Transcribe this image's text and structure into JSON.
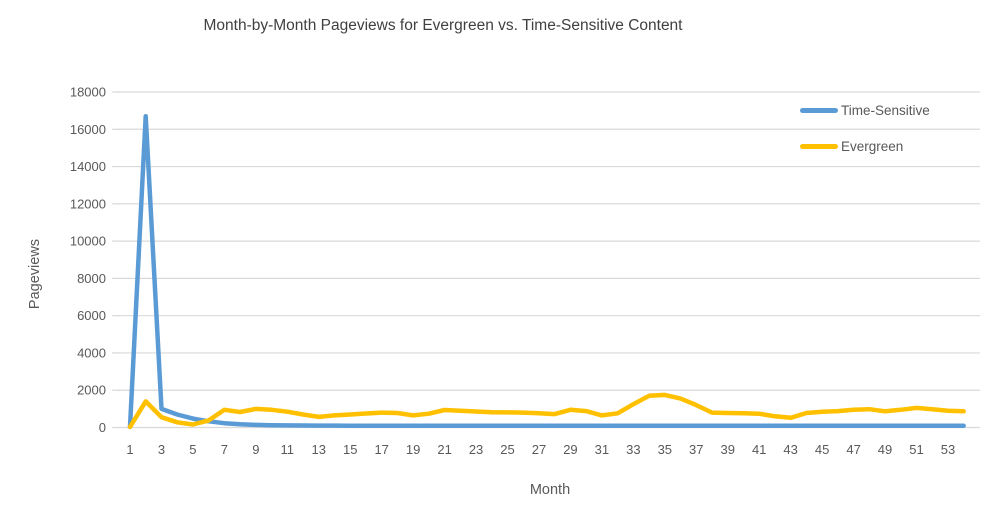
{
  "chart_data": {
    "type": "line",
    "title": "Month-by-Month Pageviews for Evergreen vs. Time-Sensitive Content",
    "xlabel": "Month",
    "ylabel": "Pageviews",
    "ylim": [
      0,
      18000
    ],
    "yticks": [
      0,
      2000,
      4000,
      6000,
      8000,
      10000,
      12000,
      14000,
      16000,
      18000
    ],
    "xtick_labels": [
      "1",
      "3",
      "5",
      "7",
      "9",
      "11",
      "13",
      "15",
      "17",
      "19",
      "21",
      "23",
      "25",
      "27",
      "29",
      "31",
      "33",
      "35",
      "37",
      "39",
      "41",
      "43",
      "45",
      "47",
      "49",
      "51",
      "53"
    ],
    "x": [
      1,
      2,
      3,
      4,
      5,
      6,
      7,
      8,
      9,
      10,
      11,
      12,
      13,
      14,
      15,
      16,
      17,
      18,
      19,
      20,
      21,
      22,
      23,
      24,
      25,
      26,
      27,
      28,
      29,
      30,
      31,
      32,
      33,
      34,
      35,
      36,
      37,
      38,
      39,
      40,
      41,
      42,
      43,
      44,
      45,
      46,
      47,
      48,
      49,
      50,
      51,
      52,
      53,
      54
    ],
    "grid": true,
    "legend_position": "top-right-overlay",
    "colors": {
      "grid": "#D9D9D9",
      "axis_text": "#595959",
      "title_text": "#404040"
    },
    "series": [
      {
        "name": "Time-Sensitive",
        "color": "#5B9BD5",
        "values": [
          30,
          16700,
          1000,
          700,
          480,
          330,
          230,
          170,
          140,
          120,
          110,
          105,
          100,
          100,
          95,
          95,
          95,
          90,
          90,
          90,
          90,
          90,
          90,
          90,
          90,
          90,
          90,
          90,
          90,
          90,
          90,
          90,
          90,
          90,
          90,
          90,
          90,
          90,
          90,
          90,
          90,
          90,
          90,
          90,
          90,
          90,
          90,
          90,
          90,
          90,
          90,
          90,
          90,
          90
        ]
      },
      {
        "name": "Evergreen",
        "color": "#FFC000",
        "values": [
          30,
          1400,
          550,
          280,
          160,
          380,
          950,
          830,
          1000,
          950,
          850,
          700,
          570,
          650,
          700,
          750,
          800,
          780,
          650,
          740,
          940,
          900,
          860,
          820,
          810,
          800,
          760,
          720,
          950,
          880,
          650,
          760,
          1250,
          1700,
          1750,
          1550,
          1200,
          800,
          780,
          760,
          740,
          600,
          520,
          780,
          850,
          880,
          950,
          980,
          870,
          950,
          1050,
          980,
          900,
          870
        ]
      }
    ]
  }
}
